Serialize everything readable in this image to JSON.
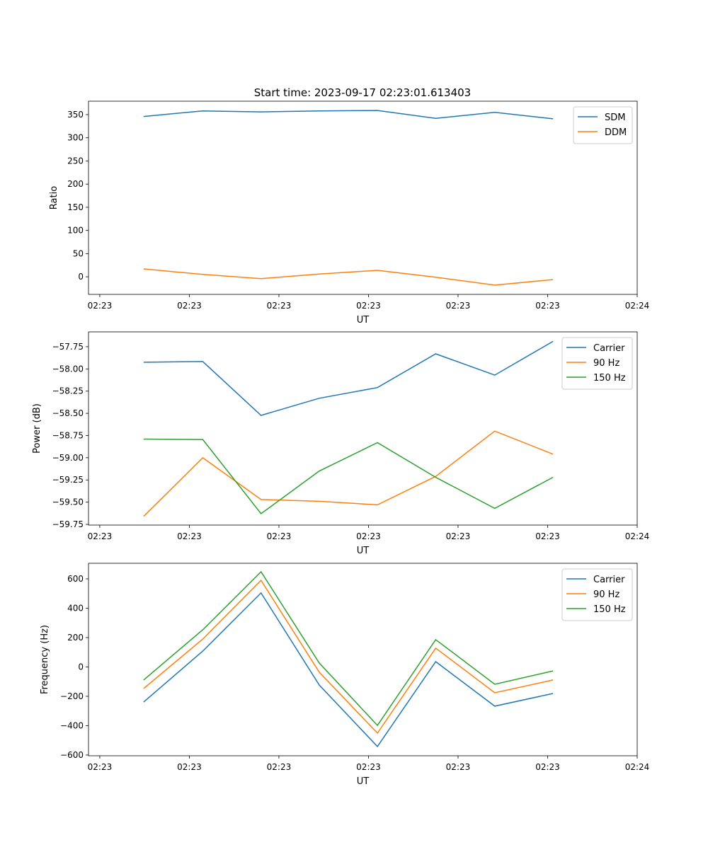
{
  "figure_title": "Start time: 2023-09-17 02:23:01.613403",
  "chart_data": [
    {
      "type": "line",
      "title": "Start time: 2023-09-17 02:23:01.613403",
      "xlabel": "UT",
      "ylabel": "Ratio",
      "x": [
        0.49,
        1.15,
        1.8,
        2.45,
        3.1,
        3.75,
        4.41,
        5.06
      ],
      "xlim": [
        -0.126,
        6.0
      ],
      "xticks": [
        0,
        1,
        2,
        3,
        4,
        5,
        6
      ],
      "xtick_labels": [
        "02:23",
        "02:23",
        "02:23",
        "02:23",
        "02:23",
        "02:23",
        "02:24"
      ],
      "ylim": [
        -38,
        379
      ],
      "yticks": [
        0,
        50,
        100,
        150,
        200,
        250,
        300,
        350
      ],
      "ytick_labels": [
        "0",
        "50",
        "100",
        "150",
        "200",
        "250",
        "300",
        "350"
      ],
      "legend_position": "top-right",
      "series": [
        {
          "name": "SDM",
          "color": "#1f77b4",
          "values": [
            346,
            358,
            356,
            358,
            359,
            342,
            355,
            341
          ]
        },
        {
          "name": "DDM",
          "color": "#ff7f0e",
          "values": [
            17,
            5,
            -4,
            6,
            14,
            -1,
            -18,
            -6
          ]
        }
      ]
    },
    {
      "type": "line",
      "xlabel": "UT",
      "ylabel": "Power (dB)",
      "x": [
        0.49,
        1.15,
        1.8,
        2.45,
        3.1,
        3.75,
        4.41,
        5.06
      ],
      "xlim": [
        -0.126,
        6.0
      ],
      "xticks": [
        0,
        1,
        2,
        3,
        4,
        5,
        6
      ],
      "xtick_labels": [
        "02:23",
        "02:23",
        "02:23",
        "02:23",
        "02:23",
        "02:23",
        "02:24"
      ],
      "ylim": [
        -59.758,
        -57.583
      ],
      "yticks": [
        -57.75,
        -58.0,
        -58.25,
        -58.5,
        -58.75,
        -59.0,
        -59.25,
        -59.5,
        -59.75
      ],
      "ytick_labels": [
        "−57.75",
        "−58.00",
        "−58.25",
        "−58.50",
        "−58.75",
        "−59.00",
        "−59.25",
        "−59.50",
        "−59.75"
      ],
      "legend_position": "top-right",
      "series": [
        {
          "name": "Carrier",
          "color": "#1f77b4",
          "values": [
            -57.925,
            -57.917,
            -58.523,
            -58.33,
            -58.21,
            -57.83,
            -58.07,
            -57.69
          ]
        },
        {
          "name": "90 Hz",
          "color": "#ff7f0e",
          "values": [
            -59.66,
            -59.0,
            -59.47,
            -59.49,
            -59.53,
            -59.21,
            -58.7,
            -58.96
          ]
        },
        {
          "name": "150 Hz",
          "color": "#2ca02c",
          "values": [
            -58.79,
            -58.795,
            -59.63,
            -59.15,
            -58.83,
            -59.22,
            -59.57,
            -59.22
          ]
        }
      ]
    },
    {
      "type": "line",
      "xlabel": "UT",
      "ylabel": "Frequency (Hz)",
      "x": [
        0.49,
        1.15,
        1.8,
        2.45,
        3.1,
        3.75,
        4.41,
        5.06
      ],
      "xlim": [
        -0.126,
        6.0
      ],
      "xticks": [
        0,
        1,
        2,
        3,
        4,
        5,
        6
      ],
      "xtick_labels": [
        "02:23",
        "02:23",
        "02:23",
        "02:23",
        "02:23",
        "02:23",
        "02:24"
      ],
      "ylim": [
        -605,
        706
      ],
      "yticks": [
        600,
        400,
        200,
        0,
        -200,
        -400,
        -600
      ],
      "ytick_labels": [
        "600",
        "400",
        "200",
        "0",
        "−200",
        "−400",
        "−600"
      ],
      "legend_position": "top-right",
      "series": [
        {
          "name": "Carrier",
          "color": "#1f77b4",
          "values": [
            -239,
            108,
            504,
            -123,
            -542,
            36,
            -267,
            -181
          ]
        },
        {
          "name": "90 Hz",
          "color": "#ff7f0e",
          "values": [
            -147,
            190,
            590,
            -36,
            -451,
            128,
            -176,
            -89
          ]
        },
        {
          "name": "150 Hz",
          "color": "#2ca02c",
          "values": [
            -89,
            253,
            648,
            27,
            -398,
            186,
            -118,
            -27
          ]
        }
      ]
    }
  ]
}
